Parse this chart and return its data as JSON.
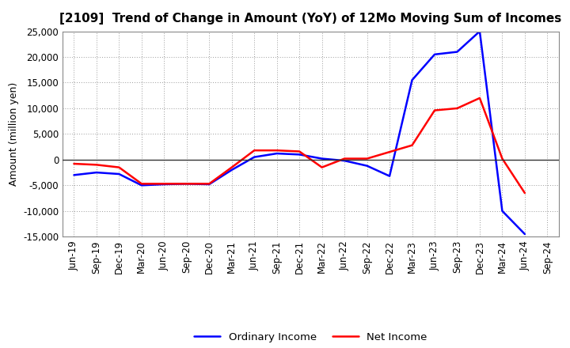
{
  "title": "[2109]  Trend of Change in Amount (YoY) of 12Mo Moving Sum of Incomes",
  "ylabel": "Amount (million yen)",
  "x_labels": [
    "Jun-19",
    "Sep-19",
    "Dec-19",
    "Mar-20",
    "Jun-20",
    "Sep-20",
    "Dec-20",
    "Mar-21",
    "Jun-21",
    "Sep-21",
    "Dec-21",
    "Mar-22",
    "Jun-22",
    "Sep-22",
    "Dec-22",
    "Mar-23",
    "Jun-23",
    "Sep-23",
    "Dec-23",
    "Mar-24",
    "Jun-24",
    "Sep-24"
  ],
  "ordinary_income": [
    -3000,
    -2500,
    -2800,
    -5000,
    -4800,
    -4700,
    -4800,
    -2000,
    500,
    1200,
    1000,
    200,
    -200,
    -1200,
    -3200,
    15500,
    20500,
    21000,
    25000,
    -10000,
    -14500,
    null
  ],
  "net_income": [
    -800,
    -1000,
    -1500,
    -4700,
    -4700,
    -4700,
    -4700,
    -1500,
    1800,
    1800,
    1600,
    -1500,
    200,
    200,
    1500,
    2800,
    9600,
    10000,
    12000,
    200,
    -6500,
    null
  ],
  "ordinary_income_color": "#0000ff",
  "net_income_color": "#ff0000",
  "ylim": [
    -15000,
    25000
  ],
  "yticks": [
    -15000,
    -10000,
    -5000,
    0,
    5000,
    10000,
    15000,
    20000,
    25000
  ],
  "background_color": "#ffffff",
  "grid_color": "#999999",
  "legend_labels": [
    "Ordinary Income",
    "Net Income"
  ],
  "line_width": 1.8,
  "title_fontsize": 11,
  "ylabel_fontsize": 9,
  "tick_fontsize": 8.5
}
